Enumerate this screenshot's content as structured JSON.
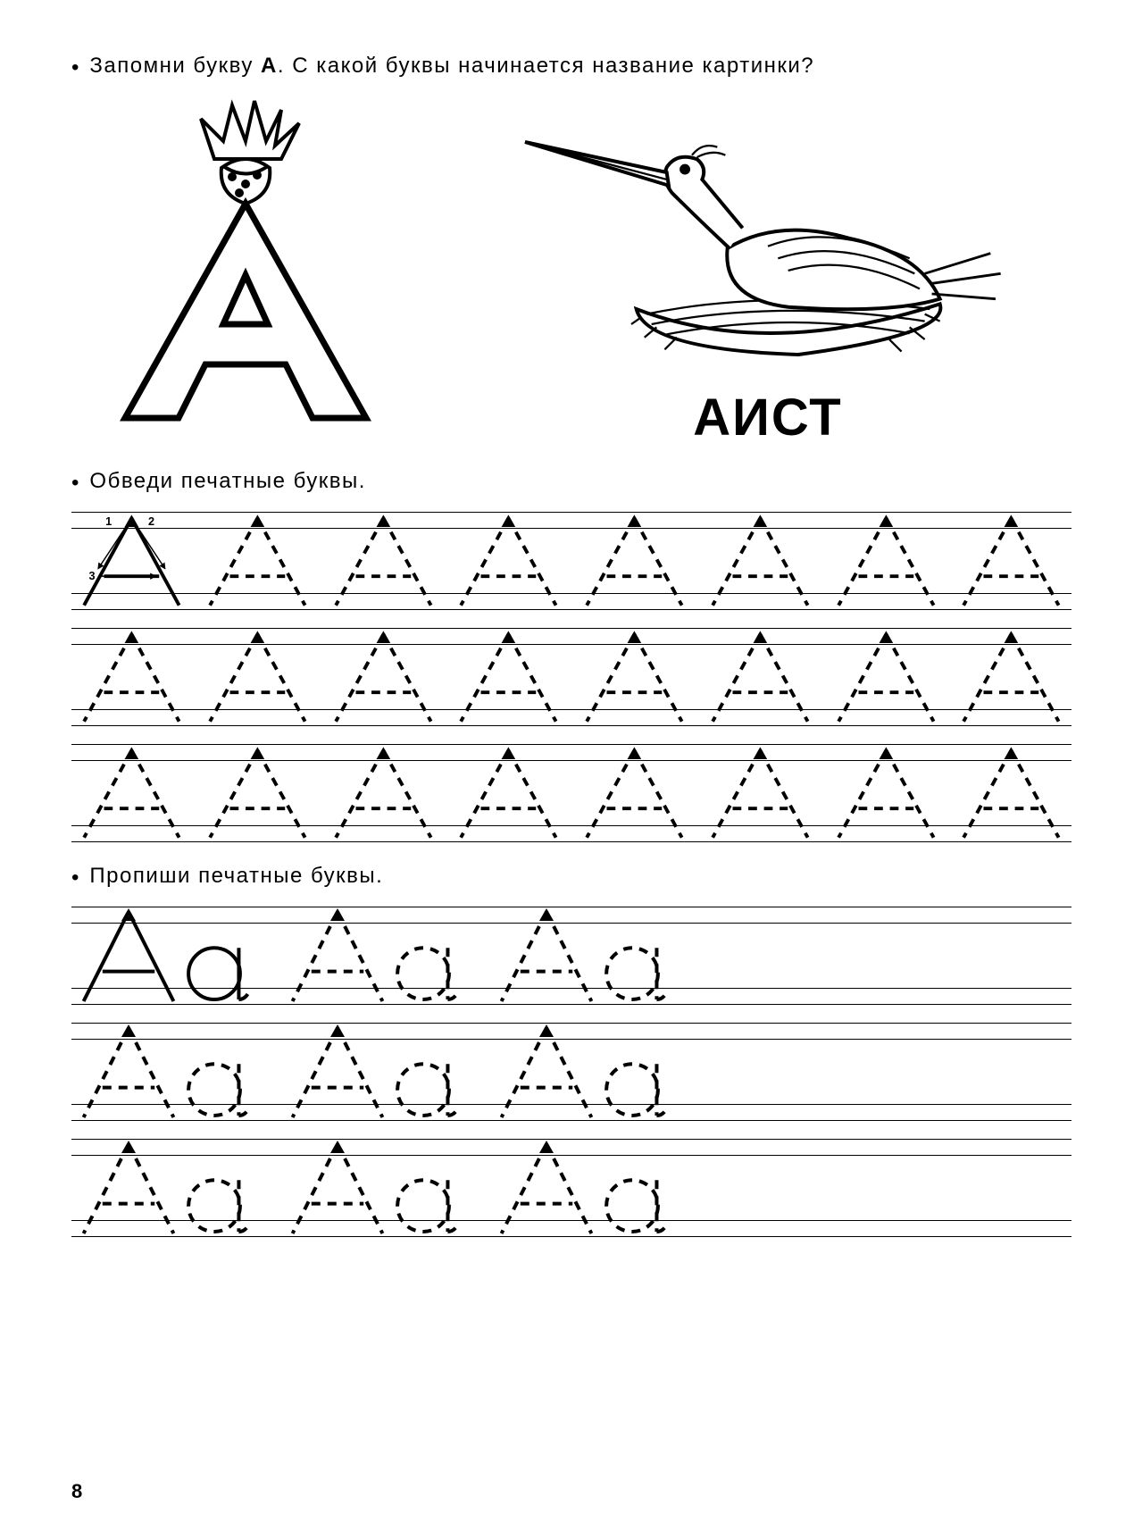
{
  "page_number": "8",
  "instructions": {
    "learn": "Запомни букву А. С какой буквы начинается название картинки?",
    "learn_bold_letter": "А",
    "trace": "Обведи печатные буквы.",
    "write": "Пропиши печатные буквы."
  },
  "picture_word": "АИСТ",
  "big_letter": "А",
  "stroke_numbers": [
    "1",
    "2",
    "3"
  ],
  "tracing": {
    "rows": 3,
    "letters_per_row": 8,
    "letter": "А",
    "dash_pattern": "10,8",
    "stroke_color": "#000000",
    "stroke_width": 4,
    "first_letter_solid": true
  },
  "writing": {
    "rows": 3,
    "pairs_per_row": 3,
    "upper": "А",
    "lower": "а",
    "first_pair_solid_upper": true,
    "dash_pattern": "10,8",
    "stroke_color": "#000000",
    "stroke_width": 4
  },
  "colors": {
    "background": "#ffffff",
    "text": "#000000",
    "guideline": "#000000"
  },
  "fonts": {
    "instruction_size_pt": 18,
    "word_label_size_pt": 44,
    "page_num_size_pt": 16
  }
}
